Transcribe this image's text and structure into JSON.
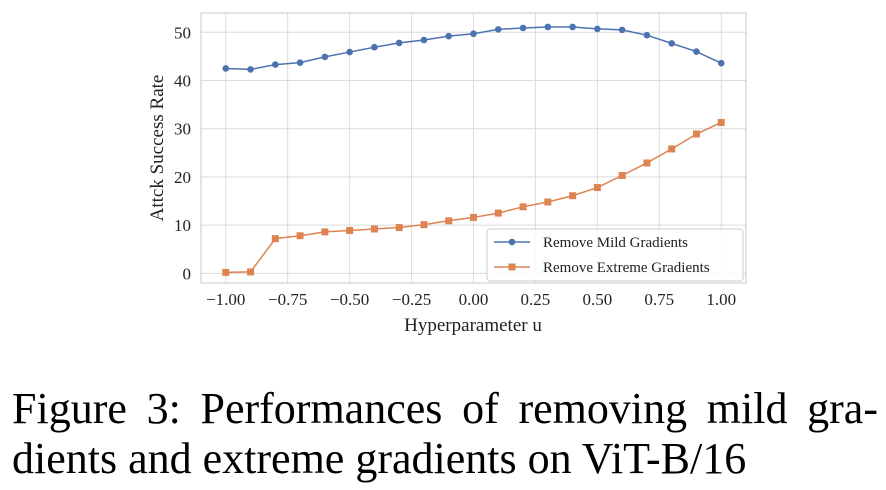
{
  "chart_data": {
    "type": "line",
    "xlabel": "Hyperparameter u",
    "ylabel": "Attck Success Rate",
    "xlim": [
      -1.1,
      1.1
    ],
    "ylim": [
      -2,
      54
    ],
    "x_ticks": [
      -1.0,
      -0.75,
      -0.5,
      -0.25,
      0.0,
      0.25,
      0.5,
      0.75,
      1.0
    ],
    "x_tick_labels": [
      "−1.00",
      "−0.75",
      "−0.50",
      "−0.25",
      "0.00",
      "0.25",
      "0.50",
      "0.75",
      "1.00"
    ],
    "y_ticks": [
      0,
      10,
      20,
      30,
      40,
      50
    ],
    "y_tick_labels": [
      "0",
      "10",
      "20",
      "30",
      "40",
      "50"
    ],
    "grid": true,
    "legend_position": "lower-right",
    "x": [
      -1.0,
      -0.9,
      -0.8,
      -0.7,
      -0.6,
      -0.5,
      -0.4,
      -0.3,
      -0.2,
      -0.1,
      0.0,
      0.1,
      0.2,
      0.3,
      0.4,
      0.5,
      0.6,
      0.7,
      0.8,
      0.9,
      1.0
    ],
    "series": [
      {
        "name": "Remove Mild Gradients",
        "color": "#4c72b0",
        "marker": "circle",
        "values": [
          42.5,
          42.3,
          43.3,
          43.7,
          44.9,
          45.9,
          46.9,
          47.8,
          48.4,
          49.2,
          49.7,
          50.6,
          50.9,
          51.1,
          51.1,
          50.7,
          50.5,
          49.4,
          47.7,
          46.0,
          43.6
        ]
      },
      {
        "name": "Remove Extreme Gradients",
        "color": "#dd8452",
        "marker": "square",
        "values": [
          0.2,
          0.3,
          7.2,
          7.8,
          8.6,
          8.9,
          9.2,
          9.5,
          10.1,
          10.9,
          11.6,
          12.5,
          13.8,
          14.8,
          16.1,
          17.8,
          20.3,
          22.9,
          25.8,
          28.9,
          31.3
        ]
      }
    ]
  },
  "caption": {
    "line1": "Figure 3: Performances of removing mild gra-",
    "line2": "dients and extreme gradients on ViT-B/16"
  }
}
